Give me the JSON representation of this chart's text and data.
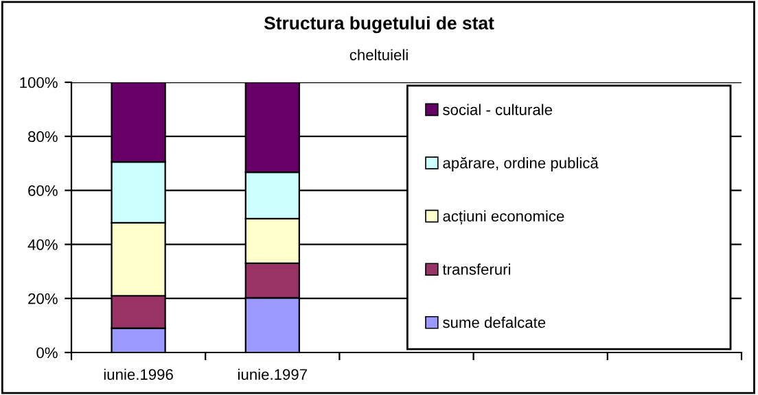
{
  "chart_data": {
    "type": "bar",
    "title": "Structura bugetului de stat",
    "subtitle": "cheltuieli",
    "categories": [
      "iunie.1996",
      "iunie.1997",
      null,
      null,
      null
    ],
    "stacked": true,
    "series": [
      {
        "name": "sume defalcate",
        "color": "#9999ff",
        "values": [
          9.0,
          20.2,
          null,
          null,
          null
        ]
      },
      {
        "name": "transferuri",
        "color": "#993366",
        "values": [
          12.0,
          12.8,
          null,
          null,
          null
        ]
      },
      {
        "name": "acțiuni economice",
        "color": "#ffffcc",
        "values": [
          27.0,
          16.5,
          null,
          null,
          null
        ]
      },
      {
        "name": "apărare, ordine publică",
        "color": "#ccffff",
        "values": [
          22.5,
          17.2,
          null,
          null,
          null
        ]
      },
      {
        "name": "social - culturale",
        "color": "#660066",
        "values": [
          29.5,
          33.3,
          null,
          null,
          null
        ]
      }
    ],
    "ylim": [
      0,
      100
    ],
    "yticks": [
      {
        "value": 0,
        "label": "0%"
      },
      {
        "value": 20,
        "label": "20%"
      },
      {
        "value": 40,
        "label": "40%"
      },
      {
        "value": 60,
        "label": "60%"
      },
      {
        "value": 80,
        "label": "80%"
      },
      {
        "value": 100,
        "label": "100%"
      }
    ],
    "grid": "y",
    "legend": "right"
  }
}
